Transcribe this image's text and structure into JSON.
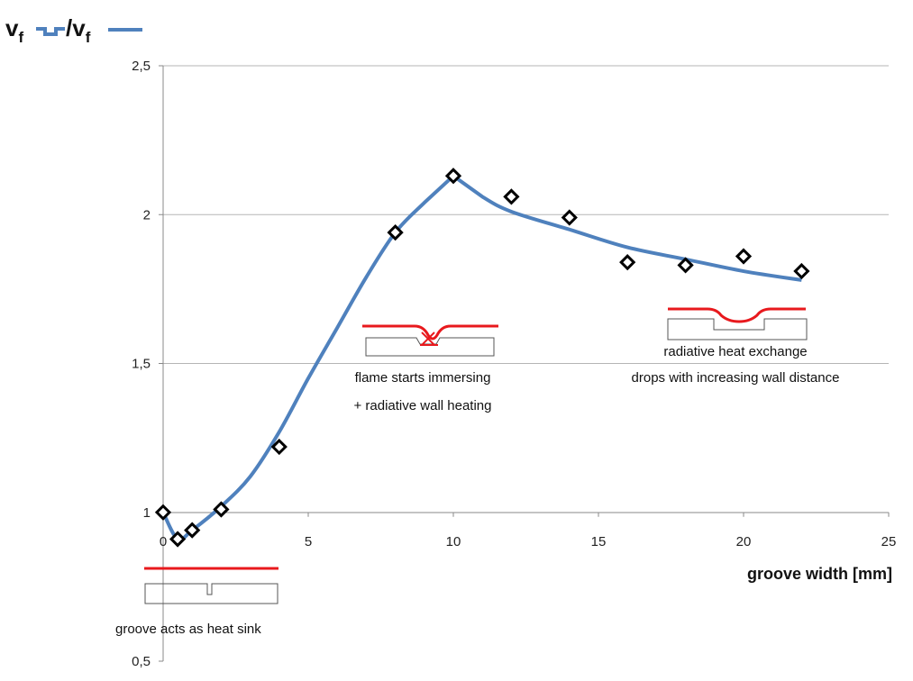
{
  "chart_data": {
    "type": "scatter",
    "title": "",
    "xlabel": "groove width [mm]",
    "ylabel_main": "v",
    "ylabel_sub": "f",
    "ylabel_slash": "/",
    "xlim": [
      0,
      25
    ],
    "ylim": [
      0.5,
      2.5
    ],
    "x_ticks": [
      0,
      5,
      10,
      15,
      20,
      25
    ],
    "y_ticks": [
      0.5,
      1,
      1.5,
      2,
      2.5
    ],
    "x_tick_labels": [
      "0",
      "5",
      "10",
      "15",
      "20",
      "25"
    ],
    "y_tick_labels": [
      "0,5",
      "1",
      "1,5",
      "2",
      "2,5"
    ],
    "grid": "horizontal",
    "colors": {
      "fit": "#4f81bd",
      "marker": "#000000",
      "flame": "#e8191d",
      "wall": "#555555"
    },
    "series": [
      {
        "marker": "diamond-open",
        "x": [
          0,
          0.5,
          1,
          2,
          4,
          8,
          10,
          12,
          14,
          16,
          18,
          20,
          22
        ],
        "y": [
          1.0,
          0.91,
          0.94,
          1.01,
          1.22,
          1.94,
          2.13,
          2.06,
          1.99,
          1.84,
          1.83,
          1.86,
          1.81
        ]
      },
      {
        "line": "fit",
        "x": [
          0,
          0.5,
          1,
          2,
          3,
          4,
          5,
          6,
          7,
          8,
          9,
          10,
          11,
          12,
          14,
          16,
          18,
          20,
          22
        ],
        "y": [
          1.0,
          0.91,
          0.94,
          1.02,
          1.12,
          1.27,
          1.45,
          1.62,
          1.79,
          1.94,
          2.04,
          2.13,
          2.06,
          2.01,
          1.95,
          1.89,
          1.85,
          1.81,
          1.78
        ]
      }
    ],
    "annotations": [
      {
        "id": "heat-sink",
        "text": "groove acts as heat sink"
      },
      {
        "id": "immersing",
        "lines": [
          "flame starts  immersing",
          "+ radiative wall heating"
        ]
      },
      {
        "id": "radiative",
        "lines": [
          "radiative heat exchange",
          "drops with increasing wall distance"
        ]
      }
    ]
  }
}
